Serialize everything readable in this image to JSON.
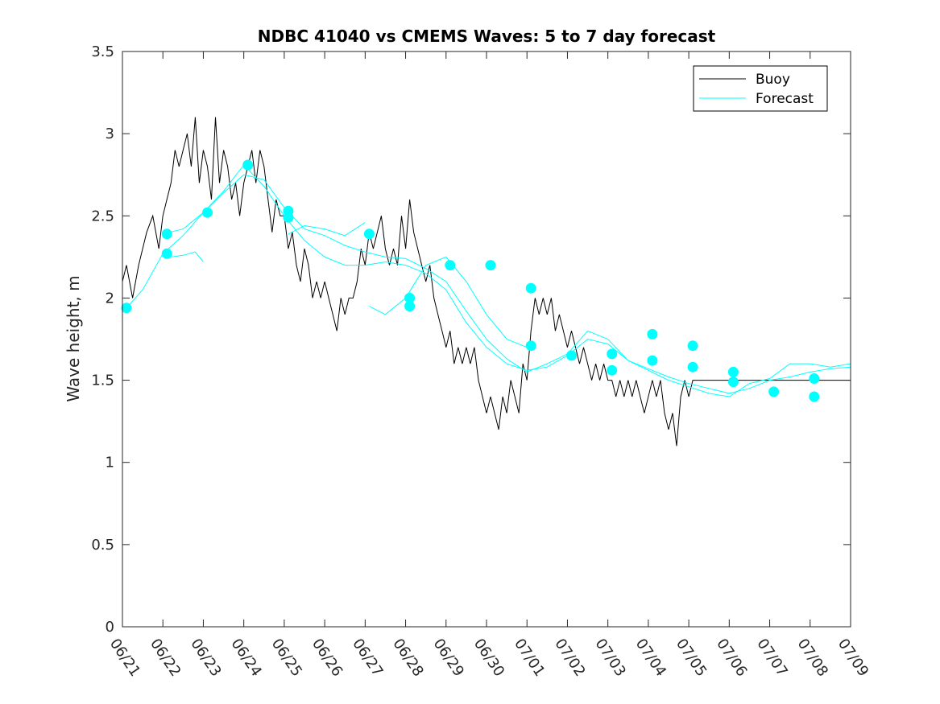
{
  "chart_data": {
    "type": "line",
    "title": "NDBC 41040 vs CMEMS Waves: 5 to 7 day forecast",
    "xlabel": "",
    "ylabel": "Wave height, m",
    "ylim": [
      0,
      3.5
    ],
    "yticks": [
      0,
      0.5,
      1,
      1.5,
      2,
      2.5,
      3,
      3.5
    ],
    "ytick_labels": [
      "0",
      "0.5",
      "1",
      "1.5",
      "2",
      "2.5",
      "3",
      "3.5"
    ],
    "xlim": [
      "06/21",
      "07/09"
    ],
    "xtick_labels": [
      "06/21",
      "06/22",
      "06/23",
      "06/24",
      "06/25",
      "06/26",
      "06/27",
      "06/28",
      "06/29",
      "06/30",
      "07/01",
      "07/02",
      "07/03",
      "07/04",
      "07/05",
      "07/06",
      "07/07",
      "07/08",
      "07/09"
    ],
    "legend": {
      "placement": "top-right",
      "entries": [
        {
          "label": "Buoy",
          "color": "#000000"
        },
        {
          "label": "Forecast",
          "color": "#00FFFF"
        }
      ]
    },
    "grid": false,
    "series": [
      {
        "name": "Buoy",
        "color": "#000000",
        "x_days_from_start": [
          0.0,
          0.1,
          0.25,
          0.4,
          0.5,
          0.6,
          0.75,
          0.9,
          1.0,
          1.1,
          1.2,
          1.3,
          1.4,
          1.5,
          1.6,
          1.7,
          1.8,
          1.9,
          2.0,
          2.1,
          2.2,
          2.3,
          2.4,
          2.5,
          2.6,
          2.7,
          2.8,
          2.9,
          3.0,
          3.1,
          3.2,
          3.3,
          3.4,
          3.5,
          3.6,
          3.7,
          3.8,
          3.9,
          4.0,
          4.1,
          4.2,
          4.3,
          4.4,
          4.5,
          4.6,
          4.7,
          4.8,
          4.9,
          5.0,
          5.1,
          5.2,
          5.3,
          5.4,
          5.5,
          5.6,
          5.7,
          5.8,
          5.9,
          6.0,
          6.1,
          6.2,
          6.3,
          6.4,
          6.5,
          6.6,
          6.7,
          6.8,
          6.9,
          7.0,
          7.1,
          7.2,
          7.3,
          7.4,
          7.5,
          7.6,
          7.7,
          7.8,
          7.9,
          8.0,
          8.1,
          8.2,
          8.3,
          8.4,
          8.5,
          8.6,
          8.7,
          8.8,
          8.9,
          9.0,
          9.1,
          9.2,
          9.3,
          9.4,
          9.5,
          9.6,
          9.7,
          9.8,
          9.9,
          10.0,
          10.1,
          10.2,
          10.3,
          10.4,
          10.5,
          10.6,
          10.7,
          10.8,
          10.9,
          11.0,
          11.1,
          11.2,
          11.3,
          11.4,
          11.5,
          11.6,
          11.7,
          11.8,
          11.9,
          12.0,
          12.1,
          12.2,
          12.3,
          12.4,
          12.5,
          12.6,
          12.7,
          12.8,
          12.9,
          13.0,
          13.1,
          13.2,
          13.3,
          13.4,
          13.5,
          13.6,
          13.7,
          13.8,
          13.9,
          14.0,
          14.1,
          14.2,
          14.3,
          14.4,
          14.5,
          14.6,
          14.7,
          14.8,
          14.9,
          15.0,
          15.1,
          15.2,
          15.3,
          15.4,
          15.5,
          15.6,
          15.7,
          15.8,
          15.9,
          16.0,
          16.1,
          16.2,
          16.3,
          16.4,
          16.5,
          16.6,
          16.7,
          16.8,
          16.9,
          17.0,
          17.1,
          17.2,
          17.3,
          17.4,
          17.5,
          17.6,
          17.7,
          17.8,
          17.9,
          18.0
        ],
        "values": [
          2.1,
          2.2,
          2.0,
          2.2,
          2.3,
          2.4,
          2.5,
          2.3,
          2.5,
          2.6,
          2.7,
          2.9,
          2.8,
          2.9,
          3.0,
          2.8,
          3.1,
          2.7,
          2.9,
          2.8,
          2.6,
          3.1,
          2.7,
          2.9,
          2.8,
          2.6,
          2.7,
          2.5,
          2.7,
          2.8,
          2.9,
          2.7,
          2.9,
          2.8,
          2.6,
          2.4,
          2.6,
          2.5,
          2.5,
          2.3,
          2.4,
          2.2,
          2.1,
          2.3,
          2.2,
          2.0,
          2.1,
          2.0,
          2.1,
          2.0,
          1.9,
          1.8,
          2.0,
          1.9,
          2.0,
          2.0,
          2.1,
          2.3,
          2.2,
          2.4,
          2.3,
          2.4,
          2.5,
          2.3,
          2.2,
          2.3,
          2.2,
          2.5,
          2.3,
          2.6,
          2.4,
          2.3,
          2.2,
          2.1,
          2.2,
          2.0,
          1.9,
          1.8,
          1.7,
          1.8,
          1.6,
          1.7,
          1.6,
          1.7,
          1.6,
          1.7,
          1.5,
          1.4,
          1.3,
          1.4,
          1.3,
          1.2,
          1.4,
          1.3,
          1.5,
          1.4,
          1.3,
          1.6,
          1.5,
          1.8,
          2.0,
          1.9,
          2.0,
          1.9,
          2.0,
          1.8,
          1.9,
          1.8,
          1.7,
          1.8,
          1.7,
          1.6,
          1.7,
          1.6,
          1.5,
          1.6,
          1.5,
          1.6,
          1.5,
          1.5,
          1.4,
          1.5,
          1.4,
          1.5,
          1.4,
          1.5,
          1.4,
          1.3,
          1.4,
          1.5,
          1.4,
          1.5,
          1.3,
          1.2,
          1.3,
          1.1,
          1.4,
          1.5,
          1.4,
          1.5,
          1.5,
          1.5,
          1.5,
          1.5,
          1.5,
          1.5,
          1.5,
          1.5,
          1.5,
          1.5,
          1.5,
          1.5,
          1.5,
          1.5,
          1.5,
          1.5,
          1.5,
          1.5,
          1.5,
          1.5,
          1.5,
          1.5,
          1.5,
          1.5,
          1.5,
          1.5,
          1.5,
          1.5,
          1.5,
          1.5,
          1.5,
          1.5,
          1.5,
          1.5,
          1.5,
          1.5,
          1.5,
          1.5,
          1.5,
          1.5,
          1.5
        ]
      },
      {
        "name": "Forecast",
        "color": "#00FFFF",
        "x_days_from_start": [
          0.1,
          0.5,
          1.0,
          1.5,
          2.0,
          2.5,
          3.0,
          3.5,
          4.0,
          4.5,
          5.0,
          5.5,
          6.0,
          6.5,
          7.0,
          7.5,
          8.0,
          8.5,
          9.0,
          9.5,
          10.0,
          10.5,
          11.0,
          11.5,
          12.0,
          12.5,
          13.0,
          13.5,
          14.0,
          14.5,
          15.0,
          15.5,
          16.0,
          16.5,
          17.0,
          17.5,
          18.0
        ],
        "values": [
          1.94,
          2.05,
          2.27,
          2.38,
          2.52,
          2.65,
          2.81,
          2.68,
          2.5,
          2.35,
          2.25,
          2.2,
          2.2,
          2.22,
          2.2,
          2.15,
          2.05,
          1.85,
          1.7,
          1.6,
          1.56,
          1.58,
          1.65,
          1.75,
          1.72,
          1.62,
          1.57,
          1.52,
          1.48,
          1.45,
          1.42,
          1.45,
          1.5,
          1.52,
          1.55,
          1.57,
          1.58
        ]
      },
      {
        "name": "Forecast",
        "color": "#00FFFF",
        "x_days_from_start": [
          1.0,
          1.5,
          2.0,
          2.5,
          3.0,
          3.5,
          4.0,
          4.5,
          5.0,
          5.5,
          6.0,
          6.5,
          7.0,
          7.5,
          8.0,
          8.5,
          9.0,
          9.5,
          10.0,
          10.5,
          11.0,
          11.5,
          12.0,
          12.5,
          13.0,
          13.5,
          14.0,
          14.5,
          15.0,
          15.5,
          16.0,
          16.5,
          17.0,
          17.5,
          18.0
        ],
        "values": [
          2.39,
          2.42,
          2.52,
          2.64,
          2.75,
          2.72,
          2.55,
          2.42,
          2.38,
          2.32,
          2.28,
          2.25,
          2.24,
          2.18,
          2.1,
          1.92,
          1.75,
          1.63,
          1.55,
          1.6,
          1.66,
          1.8,
          1.75,
          1.62,
          1.56,
          1.5,
          1.46,
          1.42,
          1.4,
          1.48,
          1.51,
          1.6,
          1.6,
          1.58,
          1.6
        ]
      },
      {
        "name": "Forecast",
        "color": "#00FFFF",
        "x_days_from_start": [
          4.1,
          4.5,
          5.0,
          5.5,
          6.0
        ],
        "values": [
          2.39,
          2.44,
          2.42,
          2.38,
          2.46
        ]
      },
      {
        "name": "Forecast",
        "color": "#00FFFF",
        "x_days_from_start": [
          1.0,
          1.2,
          1.5,
          1.8,
          2.0
        ],
        "values": [
          2.27,
          2.25,
          2.26,
          2.28,
          2.22
        ]
      },
      {
        "name": "Forecast",
        "color": "#00FFFF",
        "x_days_from_start": [
          6.1,
          6.5,
          7.0,
          7.5,
          8.0,
          8.5,
          9.0,
          9.5,
          10.0
        ],
        "values": [
          1.95,
          1.9,
          2.0,
          2.2,
          2.25,
          2.1,
          1.9,
          1.75,
          1.7
        ]
      }
    ],
    "markers": {
      "color": "#00FFFF",
      "x_days_from_start": [
        0.1,
        1.1,
        1.1,
        2.1,
        3.1,
        4.1,
        4.1,
        6.1,
        7.1,
        7.1,
        8.1,
        9.1,
        10.1,
        10.1,
        11.1,
        12.1,
        12.1,
        13.1,
        13.1,
        14.1,
        14.1,
        15.1,
        15.1,
        16.1,
        17.1,
        17.1
      ],
      "values": [
        1.94,
        2.39,
        2.27,
        2.52,
        2.81,
        2.53,
        2.49,
        2.39,
        1.95,
        2.0,
        2.2,
        2.2,
        2.06,
        1.71,
        1.65,
        1.56,
        1.66,
        1.62,
        1.78,
        1.71,
        1.58,
        1.55,
        1.49,
        1.43,
        1.4,
        1.51
      ]
    }
  }
}
